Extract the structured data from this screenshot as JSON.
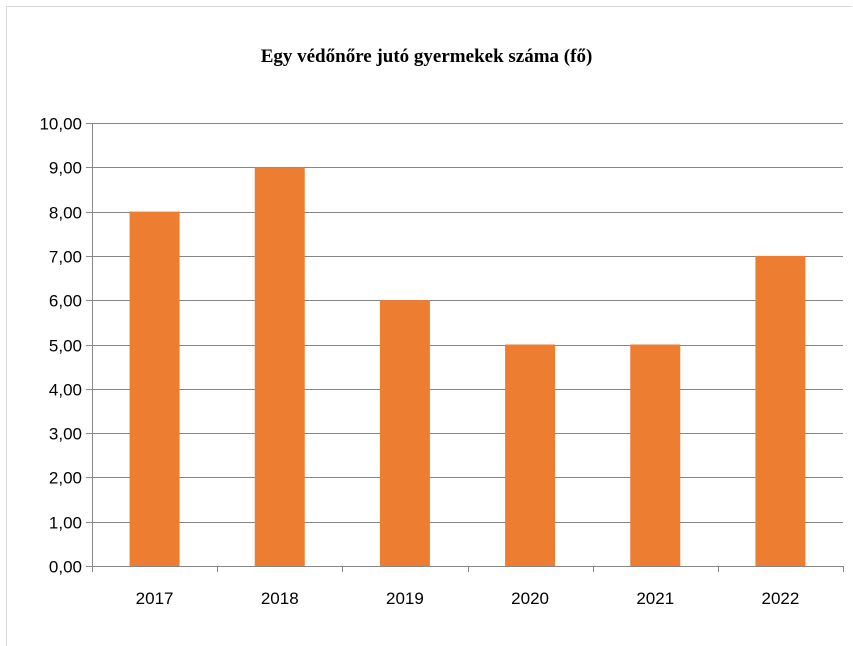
{
  "chart_data": {
    "type": "bar",
    "title": "Egy védőnőre jutó gyermekek száma (fő)",
    "categories": [
      "2017",
      "2018",
      "2019",
      "2020",
      "2021",
      "2022"
    ],
    "values": [
      8,
      9,
      6,
      5,
      5,
      7
    ],
    "ylim": [
      0,
      10
    ],
    "yticks": [
      "0,00",
      "1,00",
      "2,00",
      "3,00",
      "4,00",
      "5,00",
      "6,00",
      "7,00",
      "8,00",
      "9,00",
      "10,00"
    ],
    "bar_color": "#ED7D31",
    "grid": true,
    "legend": "none"
  }
}
